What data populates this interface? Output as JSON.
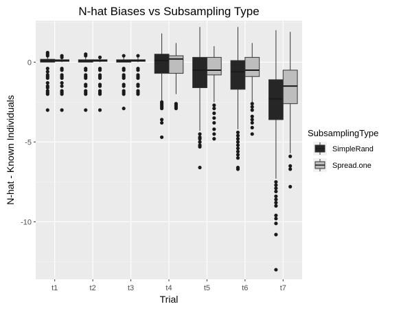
{
  "chart_data": {
    "type": "boxplot",
    "title": "N-hat Biases vs Subsampling Type",
    "xlabel": "Trial",
    "ylabel": "N-hat - Known Individuals",
    "categories": [
      "t1",
      "t2",
      "t3",
      "t4",
      "t5",
      "t6",
      "t7"
    ],
    "ylim": [
      -13.6,
      2.6
    ],
    "yticks": [
      0,
      -5,
      -10
    ],
    "ytick_labels": [
      "0",
      "-5",
      "-10"
    ],
    "grid": true,
    "legend": {
      "title": "SubsamplingType",
      "position": "right",
      "entries": [
        {
          "label": "SimpleRand",
          "color": "#262626"
        },
        {
          "label": "Spread.one",
          "color": "#bdbdbd"
        }
      ]
    },
    "series": [
      {
        "name": "SimpleRand",
        "color": "#262626",
        "boxes": [
          {
            "q1": 0.0,
            "median": 0.08,
            "q3": 0.18,
            "whisker_low": 0.0,
            "whisker_high": 0.3,
            "outliers": [
              0.6,
              0.5,
              0.4,
              -0.4,
              -0.6,
              -0.8,
              -0.9,
              -1.0,
              -1.3,
              -1.5,
              -1.6,
              -1.8,
              -1.9,
              -2.0,
              -3.0
            ]
          },
          {
            "q1": 0.0,
            "median": 0.08,
            "q3": 0.15,
            "whisker_low": 0.0,
            "whisker_high": 0.3,
            "outliers": [
              0.5,
              0.4,
              -0.4,
              -0.5,
              -0.8,
              -0.9,
              -1.0,
              -1.4,
              -1.5,
              -1.8,
              -1.9,
              -2.0,
              -3.0
            ]
          },
          {
            "q1": 0.0,
            "median": 0.08,
            "q3": 0.15,
            "whisker_low": 0.0,
            "whisker_high": 0.3,
            "outliers": [
              0.4,
              -0.4,
              -0.5,
              -0.8,
              -0.9,
              -1.0,
              -1.4,
              -1.5,
              -1.8,
              -1.9,
              -2.0,
              -2.9
            ]
          },
          {
            "q1": -0.7,
            "median": 0.1,
            "q3": 0.5,
            "whisker_low": -2.4,
            "whisker_high": 1.8,
            "outliers": [
              -2.5,
              -2.6,
              -2.7,
              -2.8,
              -2.9,
              -3.6,
              -3.8,
              -4.7
            ]
          },
          {
            "q1": -1.6,
            "median": -0.5,
            "q3": 0.3,
            "whisker_low": -4.3,
            "whisker_high": 2.2,
            "outliers": [
              -4.5,
              -4.7,
              -4.8,
              -5.0,
              -5.2,
              -5.3,
              -6.6
            ]
          },
          {
            "q1": -1.7,
            "median": -0.6,
            "q3": 0.1,
            "whisker_low": -4.2,
            "whisker_high": 2.2,
            "outliers": [
              -4.4,
              -4.6,
              -4.8,
              -5.0,
              -5.2,
              -5.4,
              -5.6,
              -5.8,
              -6.0,
              -6.6,
              -6.7
            ]
          },
          {
            "q1": -3.6,
            "median": -2.3,
            "q3": -1.1,
            "whisker_low": -7.3,
            "whisker_high": 2.0,
            "outliers": [
              -7.5,
              -7.7,
              -7.9,
              -8.1,
              -8.4,
              -8.6,
              -8.8,
              -9.0,
              -9.6,
              -9.8,
              -10.1,
              -10.8,
              -13.0
            ]
          }
        ]
      },
      {
        "name": "Spread.one",
        "color": "#bdbdbd",
        "boxes": [
          {
            "q1": 0.05,
            "median": 0.1,
            "q3": 0.15,
            "whisker_low": 0.0,
            "whisker_high": 0.3,
            "outliers": [
              0.4,
              0.3,
              -0.4,
              -0.5,
              -0.8,
              -0.9,
              -1.0,
              -1.3,
              -1.5,
              -1.8,
              -1.9,
              -2.0,
              -3.0
            ]
          },
          {
            "q1": 0.05,
            "median": 0.1,
            "q3": 0.15,
            "whisker_low": 0.0,
            "whisker_high": 0.3,
            "outliers": [
              0.3,
              -0.4,
              -0.5,
              -0.8,
              -0.9,
              -1.0,
              -1.4,
              -1.5,
              -1.8,
              -1.9,
              -2.0,
              -3.0
            ]
          },
          {
            "q1": 0.05,
            "median": 0.1,
            "q3": 0.15,
            "whisker_low": 0.0,
            "whisker_high": 0.3,
            "outliers": [
              0.4,
              -0.4,
              -0.5,
              -0.8,
              -0.9,
              -1.0,
              -1.4,
              -1.5,
              -1.8,
              -1.9,
              -2.0
            ]
          },
          {
            "q1": -0.7,
            "median": 0.2,
            "q3": 0.4,
            "whisker_low": -2.0,
            "whisker_high": 1.2,
            "outliers": [
              -2.6,
              -2.7,
              -2.8,
              -2.9
            ]
          },
          {
            "q1": -0.8,
            "median": -0.5,
            "q3": 0.3,
            "whisker_low": -2.5,
            "whisker_high": 1.0,
            "outliers": [
              -2.7,
              -2.9,
              -3.2,
              -3.5,
              -3.8,
              -4.2,
              -4.5,
              -4.8
            ]
          },
          {
            "q1": -0.9,
            "median": -0.5,
            "q3": 0.3,
            "whisker_low": -2.5,
            "whisker_high": 1.2,
            "outliers": [
              -2.6,
              -2.8,
              -3.0,
              -3.4,
              -3.6,
              -3.8,
              -4.1,
              -4.5
            ]
          },
          {
            "q1": -2.6,
            "median": -1.5,
            "q3": -0.5,
            "whisker_low": -5.7,
            "whisker_high": 1.9,
            "outliers": [
              -5.9,
              -6.5,
              -6.7,
              -7.8
            ]
          }
        ]
      }
    ]
  }
}
